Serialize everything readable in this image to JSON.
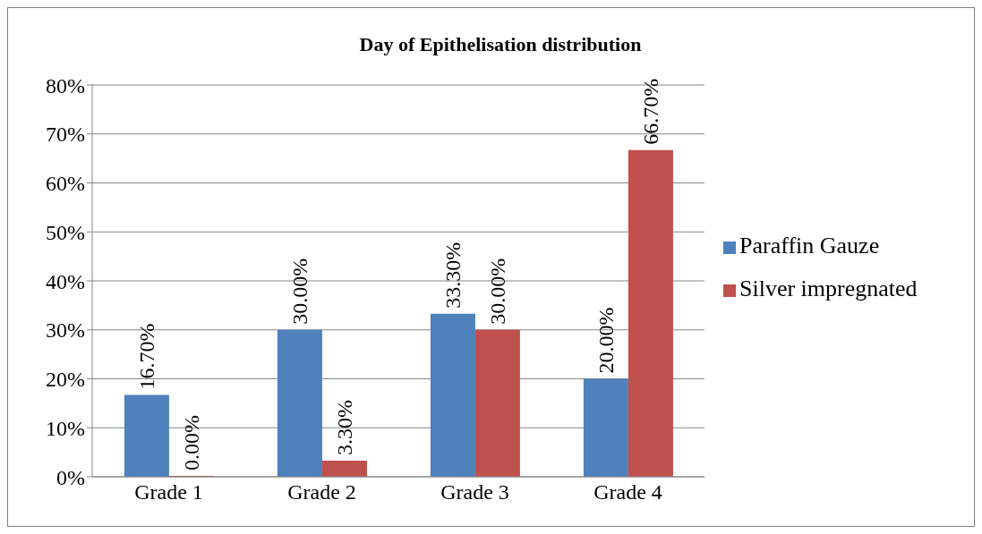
{
  "chart_data": {
    "type": "bar",
    "title": "Day of Epithelisation distribution",
    "categories": [
      "Grade 1",
      "Grade 2",
      "Grade 3",
      "Grade 4"
    ],
    "series": [
      {
        "name": "Paraffin Gauze",
        "color": "#4f81bd",
        "values": [
          16.7,
          30,
          33.3,
          20
        ],
        "value_labels": [
          "16.70%",
          "30.00%",
          "33.30%",
          "20.00%"
        ]
      },
      {
        "name": "Silver impregnated",
        "color": "#c0504d",
        "values": [
          0,
          3.3,
          30,
          66.7
        ],
        "value_labels": [
          "0.00%",
          "3.30%",
          "30.00%",
          "66.70%"
        ]
      }
    ],
    "ylim": [
      0,
      80
    ],
    "yticks": [
      {
        "value": 0,
        "label": "0%"
      },
      {
        "value": 10,
        "label": "10%"
      },
      {
        "value": 20,
        "label": "20%"
      },
      {
        "value": 30,
        "label": "30%"
      },
      {
        "value": 40,
        "label": "40%"
      },
      {
        "value": 50,
        "label": "50%"
      },
      {
        "value": 60,
        "label": "60%"
      },
      {
        "value": 70,
        "label": "70%"
      },
      {
        "value": 80,
        "label": "80%"
      }
    ],
    "grid": "y",
    "legend": "right"
  }
}
